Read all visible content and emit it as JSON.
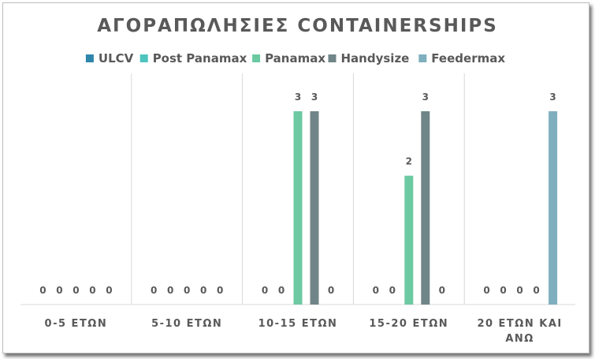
{
  "chart_data": {
    "type": "bar",
    "title": "ΑΓΟΡΑΠΩΛΗΣΙΕΣ CONTAINERSHIPS",
    "categories": [
      "0-5 ΕΤΩΝ",
      "5-10 ΕΤΩΝ",
      "10-15 ΕΤΩΝ",
      "15-20 ΕΤΩΝ",
      "20 ΕΤΩΝ ΚΑΙ ΑΝΩ"
    ],
    "series": [
      {
        "name": "ULCV",
        "color": "#2E86AB",
        "values": [
          0,
          0,
          0,
          0,
          0
        ]
      },
      {
        "name": "Post Panamax",
        "color": "#4DC4BD",
        "values": [
          0,
          0,
          0,
          0,
          0
        ]
      },
      {
        "name": "Panamax",
        "color": "#6CC9A2",
        "values": [
          0,
          0,
          3,
          2,
          0
        ]
      },
      {
        "name": "Handysize",
        "color": "#708587",
        "values": [
          0,
          0,
          3,
          3,
          0
        ]
      },
      {
        "name": "Feedermax",
        "color": "#7FAFBE",
        "values": [
          0,
          0,
          0,
          0,
          3
        ]
      }
    ],
    "ylim": [
      0,
      3
    ],
    "grid": false,
    "legend_position": "top",
    "data_labels": true
  }
}
